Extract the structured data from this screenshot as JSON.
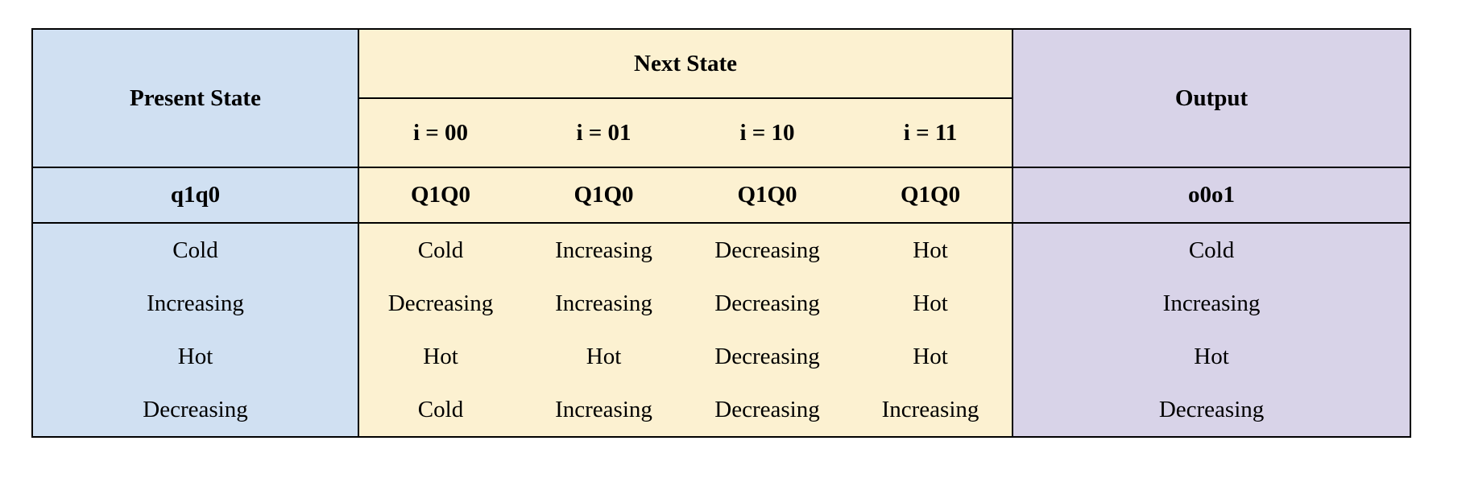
{
  "headers": {
    "present_state": "Present State",
    "next_state": "Next State",
    "output": "Output",
    "inputs": [
      "i = 00",
      "i = 01",
      "i = 10",
      "i = 11"
    ]
  },
  "encodings": {
    "present": "q1q0",
    "next": [
      "Q1Q0",
      "Q1Q0",
      "Q1Q0",
      "Q1Q0"
    ],
    "output": "o0o1"
  },
  "rows": [
    {
      "present": "Cold",
      "next": [
        "Cold",
        "Increasing",
        "Decreasing",
        "Hot"
      ],
      "output": "Cold"
    },
    {
      "present": "Increasing",
      "next": [
        "Decreasing",
        "Increasing",
        "Decreasing",
        "Hot"
      ],
      "output": "Increasing"
    },
    {
      "present": "Hot",
      "next": [
        "Hot",
        "Hot",
        "Decreasing",
        "Hot"
      ],
      "output": "Hot"
    },
    {
      "present": "Decreasing",
      "next": [
        "Cold",
        "Increasing",
        "Decreasing",
        "Increasing"
      ],
      "output": "Decreasing"
    }
  ],
  "colors": {
    "present_state_bg": "#d0e0f2",
    "next_state_bg": "#fcf1d1",
    "output_bg": "#d8d3e8",
    "border": "#000000"
  }
}
